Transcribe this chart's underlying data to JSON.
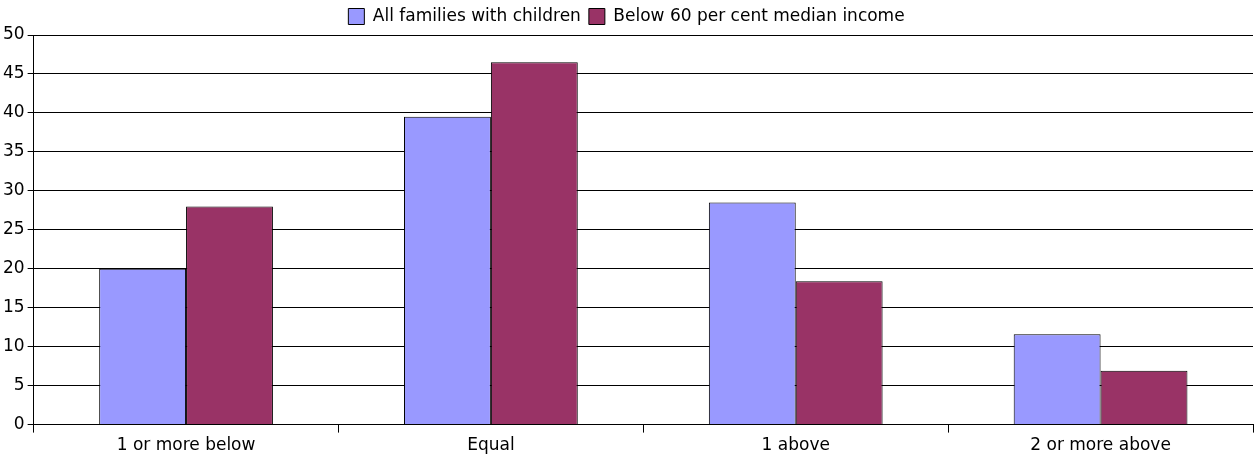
{
  "chart_data": {
    "type": "bar",
    "categories": [
      "1 or more below",
      "Equal",
      "1 above",
      "2 or more above"
    ],
    "series": [
      {
        "name": "All families with children",
        "color": "#9999ff",
        "values": [
          20,
          39.5,
          28.5,
          11.6
        ]
      },
      {
        "name": "Below 60 per cent median income",
        "color": "#993366",
        "values": [
          28,
          46.5,
          18.4,
          6.9
        ]
      }
    ],
    "ylim": [
      0,
      50
    ],
    "yticks": [
      0,
      5,
      10,
      15,
      20,
      25,
      30,
      35,
      40,
      45,
      50
    ],
    "grid": "y",
    "legend": "top"
  }
}
